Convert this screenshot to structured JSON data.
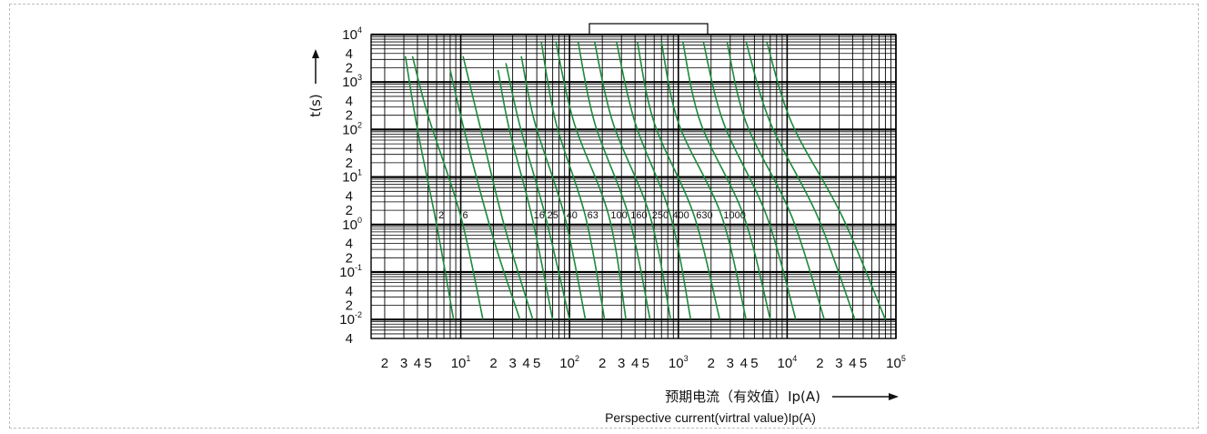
{
  "chart_data": {
    "type": "line",
    "title": "",
    "xlabel": "预期电流（有效值）Ip(A)",
    "xlabel_en": "Perspective current(virtral value)Ip(A)",
    "ylabel": "t(s)",
    "x_scale": "log",
    "y_scale": "log",
    "xlim": [
      1.5,
      100000
    ],
    "ylim": [
      0.004,
      10000
    ],
    "grid": true,
    "line_color": "#1c8a3a",
    "x_ticks": [
      {
        "value": 2,
        "base": "2",
        "exp": ""
      },
      {
        "value": 3,
        "base": "3",
        "exp": ""
      },
      {
        "value": 4,
        "base": "4",
        "exp": ""
      },
      {
        "value": 5,
        "base": "5",
        "exp": ""
      },
      {
        "value": 10,
        "base": "10",
        "exp": "1"
      },
      {
        "value": 20,
        "base": "2",
        "exp": ""
      },
      {
        "value": 30,
        "base": "3",
        "exp": ""
      },
      {
        "value": 40,
        "base": "4",
        "exp": ""
      },
      {
        "value": 50,
        "base": "5",
        "exp": ""
      },
      {
        "value": 100,
        "base": "10",
        "exp": "2"
      },
      {
        "value": 200,
        "base": "2",
        "exp": ""
      },
      {
        "value": 300,
        "base": "3",
        "exp": ""
      },
      {
        "value": 400,
        "base": "4",
        "exp": ""
      },
      {
        "value": 500,
        "base": "5",
        "exp": ""
      },
      {
        "value": 1000,
        "base": "10",
        "exp": "3"
      },
      {
        "value": 2000,
        "base": "2",
        "exp": ""
      },
      {
        "value": 3000,
        "base": "3",
        "exp": ""
      },
      {
        "value": 4000,
        "base": "4",
        "exp": ""
      },
      {
        "value": 5000,
        "base": "5",
        "exp": ""
      },
      {
        "value": 10000,
        "base": "10",
        "exp": "4"
      },
      {
        "value": 20000,
        "base": "2",
        "exp": ""
      },
      {
        "value": 30000,
        "base": "3",
        "exp": ""
      },
      {
        "value": 40000,
        "base": "4",
        "exp": ""
      },
      {
        "value": 50000,
        "base": "5",
        "exp": ""
      },
      {
        "value": 100000,
        "base": "10",
        "exp": "5"
      }
    ],
    "y_ticks": [
      {
        "value": 10000,
        "base": "10",
        "exp": "4"
      },
      {
        "value": 4000,
        "base": "4",
        "exp": ""
      },
      {
        "value": 2000,
        "base": "2",
        "exp": ""
      },
      {
        "value": 1000,
        "base": "10",
        "exp": "3"
      },
      {
        "value": 400,
        "base": "4",
        "exp": ""
      },
      {
        "value": 200,
        "base": "2",
        "exp": ""
      },
      {
        "value": 100,
        "base": "10",
        "exp": "2"
      },
      {
        "value": 40,
        "base": "4",
        "exp": ""
      },
      {
        "value": 20,
        "base": "2",
        "exp": ""
      },
      {
        "value": 10,
        "base": "10",
        "exp": "1"
      },
      {
        "value": 4,
        "base": "4",
        "exp": ""
      },
      {
        "value": 2,
        "base": "2",
        "exp": ""
      },
      {
        "value": 1,
        "base": "10",
        "exp": "0"
      },
      {
        "value": 0.4,
        "base": "4",
        "exp": ""
      },
      {
        "value": 0.2,
        "base": "2",
        "exp": ""
      },
      {
        "value": 0.1,
        "base": "10",
        "exp": "-1"
      },
      {
        "value": 0.04,
        "base": "4",
        "exp": ""
      },
      {
        "value": 0.02,
        "base": "2",
        "exp": ""
      },
      {
        "value": 0.01,
        "base": "10",
        "exp": "-2"
      },
      {
        "value": 0.004,
        "base": "4",
        "exp": ""
      }
    ],
    "series": [
      {
        "name": "2",
        "x": [
          3.1,
          4.0,
          6.0,
          8.6
        ],
        "y": [
          3500,
          100,
          1.0,
          0.01
        ]
      },
      {
        "name": "6",
        "x": [
          3.6,
          5.0,
          10,
          16
        ],
        "y": [
          3500,
          200,
          1.5,
          0.01
        ]
      },
      {
        "name": "",
        "x": [
          8.0,
          11,
          20,
          35
        ],
        "y": [
          1800,
          80,
          0.5,
          0.01
        ]
      },
      {
        "name": "",
        "x": [
          10.5,
          15,
          25,
          46
        ],
        "y": [
          3500,
          120,
          1.0,
          0.01
        ]
      },
      {
        "name": "16",
        "x": [
          22,
          28,
          45,
          70
        ],
        "y": [
          1800,
          100,
          1.5,
          0.01
        ]
      },
      {
        "name": "25",
        "x": [
          26,
          35,
          60,
          100
        ],
        "y": [
          2500,
          120,
          1.5,
          0.01
        ]
      },
      {
        "name": "40",
        "x": [
          36,
          48,
          90,
          140
        ],
        "y": [
          3500,
          140,
          1.5,
          0.01
        ]
      },
      {
        "name": "63",
        "x": [
          55,
          75,
          140,
          210
        ],
        "y": [
          7000,
          140,
          1.5,
          0.01
        ]
      },
      {
        "name": "100",
        "x": [
          75,
          110,
          230,
          330
        ],
        "y": [
          7000,
          140,
          1.5,
          0.01
        ]
      },
      {
        "name": "160",
        "x": [
          120,
          170,
          350,
          550
        ],
        "y": [
          7000,
          140,
          1.5,
          0.01
        ]
      },
      {
        "name": "250",
        "x": [
          170,
          250,
          550,
          850
        ],
        "y": [
          7000,
          140,
          1.5,
          0.01
        ]
      },
      {
        "name": "400",
        "x": [
          270,
          400,
          850,
          1300
        ],
        "y": [
          7000,
          140,
          1.5,
          0.01
        ]
      },
      {
        "name": "630",
        "x": [
          420,
          600,
          1400,
          2400
        ],
        "y": [
          7000,
          140,
          1.5,
          0.01
        ]
      },
      {
        "name": "1000",
        "x": [
          700,
          1000,
          2500,
          4200
        ],
        "y": [
          7000,
          140,
          1.5,
          0.01
        ]
      },
      {
        "name": "",
        "x": [
          1100,
          1600,
          4000,
          7000
        ],
        "y": [
          7000,
          140,
          1.5,
          0.01
        ]
      },
      {
        "name": "",
        "x": [
          1700,
          2600,
          6500,
          12000
        ],
        "y": [
          7000,
          140,
          1.5,
          0.01
        ]
      },
      {
        "name": "",
        "x": [
          2800,
          4200,
          11000,
          22000
        ],
        "y": [
          7000,
          140,
          1.5,
          0.01
        ]
      },
      {
        "name": "",
        "x": [
          4200,
          7000,
          19000,
          42000
        ],
        "y": [
          7000,
          140,
          1.5,
          0.01
        ]
      },
      {
        "name": "",
        "x": [
          6500,
          11000,
          32000,
          80000
        ],
        "y": [
          7000,
          140,
          1.5,
          0.01
        ]
      }
    ]
  }
}
